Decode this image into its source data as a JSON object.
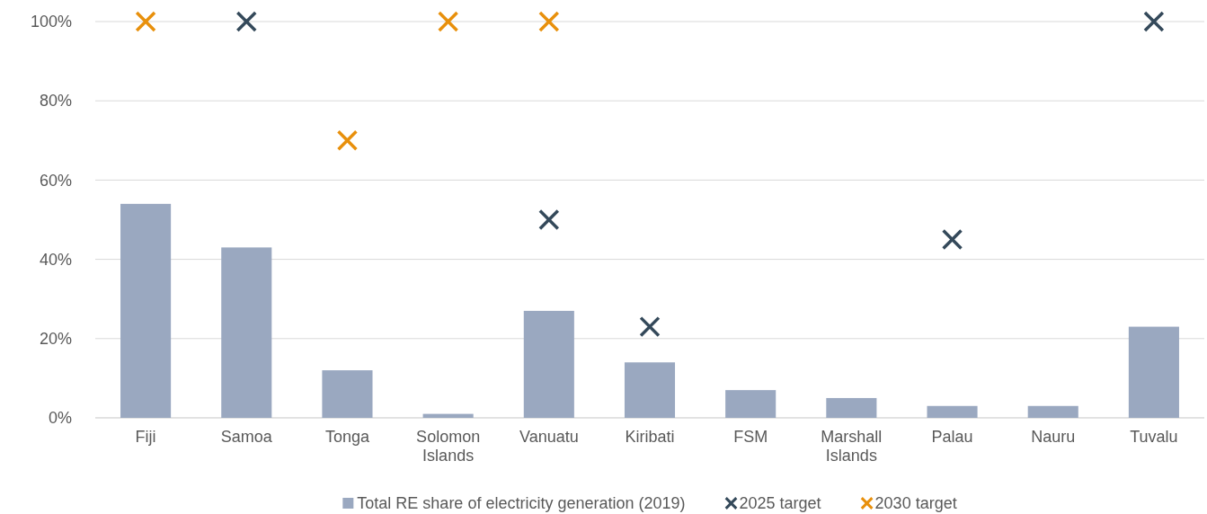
{
  "chart_data": {
    "type": "bar",
    "categories": [
      "Fiji",
      "Samoa",
      "Tonga",
      "Solomon Islands",
      "Vanuatu",
      "Kiribati",
      "FSM",
      "Marshall Islands",
      "Palau",
      "Nauru",
      "Tuvalu"
    ],
    "series": [
      {
        "name": "Total RE share of electricity generation (2019)",
        "color": "#9aa8c0",
        "values": [
          54,
          43,
          12,
          1,
          27,
          14,
          7,
          5,
          3,
          3,
          23
        ]
      },
      {
        "name": "2025 target",
        "type": "scatter",
        "color": "#34495a",
        "values": [
          null,
          100,
          null,
          null,
          50,
          23,
          null,
          null,
          45,
          null,
          100
        ]
      },
      {
        "name": "2030 target",
        "type": "scatter",
        "color": "#e8900c",
        "values": [
          100,
          null,
          70,
          100,
          100,
          null,
          null,
          null,
          null,
          null,
          null
        ]
      }
    ],
    "ylim": [
      0,
      100
    ],
    "yticks": [
      {
        "value": 0,
        "label": "0%"
      },
      {
        "value": 20,
        "label": "20%"
      },
      {
        "value": 40,
        "label": "40%"
      },
      {
        "value": 60,
        "label": "60%"
      },
      {
        "value": 80,
        "label": "80%"
      },
      {
        "value": 100,
        "label": "100%"
      }
    ],
    "grid": "y",
    "legend": "bottom",
    "marker": "cross"
  }
}
